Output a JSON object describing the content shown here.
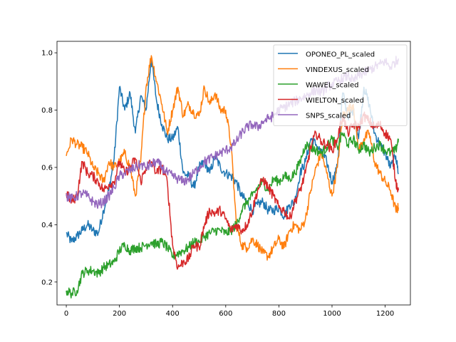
{
  "chart_data": {
    "type": "line",
    "title": "",
    "xlabel": "",
    "ylabel": "",
    "xlim": [
      -35,
      1295
    ],
    "ylim": [
      0.12,
      1.04
    ],
    "xticks": [
      0,
      200,
      400,
      600,
      800,
      1000,
      1200
    ],
    "yticks": [
      0.2,
      0.4,
      0.6,
      0.8,
      1.0
    ],
    "xtick_labels": [
      "0",
      "200",
      "400",
      "600",
      "800",
      "1000",
      "1200"
    ],
    "ytick_labels": [
      "0.2",
      "0.4",
      "0.6",
      "0.8",
      "1.0"
    ],
    "grid": false,
    "legend_position": "top-right",
    "series": [
      {
        "name": "OPONEO_PL_scaled",
        "color": "#1f77b4",
        "x": [
          0,
          20,
          40,
          60,
          80,
          100,
          120,
          140,
          160,
          180,
          200,
          220,
          240,
          260,
          280,
          300,
          320,
          340,
          360,
          380,
          400,
          420,
          440,
          460,
          480,
          500,
          520,
          540,
          560,
          580,
          600,
          620,
          640,
          660,
          680,
          700,
          720,
          740,
          760,
          780,
          800,
          820,
          840,
          860,
          880,
          900,
          920,
          940,
          960,
          980,
          1000,
          1020,
          1040,
          1060,
          1080,
          1100,
          1120,
          1140,
          1160,
          1180,
          1200,
          1220,
          1240,
          1250
        ],
        "y": [
          0.37,
          0.34,
          0.36,
          0.38,
          0.4,
          0.38,
          0.37,
          0.45,
          0.52,
          0.63,
          0.88,
          0.8,
          0.86,
          0.72,
          0.85,
          0.8,
          0.98,
          0.83,
          0.75,
          0.7,
          0.7,
          0.74,
          0.58,
          0.57,
          0.53,
          0.6,
          0.62,
          0.58,
          0.64,
          0.6,
          0.58,
          0.57,
          0.55,
          0.5,
          0.48,
          0.45,
          0.47,
          0.48,
          0.45,
          0.45,
          0.46,
          0.43,
          0.47,
          0.48,
          0.58,
          0.62,
          0.7,
          0.68,
          0.65,
          0.62,
          0.55,
          0.6,
          0.86,
          0.78,
          0.8,
          0.7,
          0.88,
          0.82,
          0.72,
          0.68,
          0.65,
          0.6,
          0.64,
          0.58
        ]
      },
      {
        "name": "VINDEXUS_scaled",
        "color": "#ff7f0e",
        "x": [
          0,
          20,
          40,
          60,
          80,
          100,
          120,
          140,
          160,
          180,
          200,
          220,
          240,
          260,
          280,
          300,
          320,
          340,
          360,
          380,
          400,
          420,
          440,
          460,
          480,
          500,
          520,
          540,
          560,
          580,
          600,
          620,
          640,
          660,
          680,
          700,
          720,
          740,
          760,
          780,
          800,
          820,
          840,
          860,
          880,
          900,
          920,
          940,
          960,
          980,
          1000,
          1020,
          1040,
          1060,
          1080,
          1100,
          1120,
          1140,
          1160,
          1180,
          1200,
          1220,
          1240,
          1250
        ],
        "y": [
          0.64,
          0.7,
          0.68,
          0.67,
          0.65,
          0.6,
          0.58,
          0.55,
          0.62,
          0.6,
          0.62,
          0.65,
          0.6,
          0.5,
          0.62,
          0.88,
          0.99,
          0.9,
          0.82,
          0.72,
          0.8,
          0.88,
          0.78,
          0.82,
          0.79,
          0.78,
          0.88,
          0.82,
          0.86,
          0.8,
          0.8,
          0.68,
          0.4,
          0.33,
          0.32,
          0.35,
          0.33,
          0.3,
          0.29,
          0.32,
          0.35,
          0.32,
          0.38,
          0.4,
          0.38,
          0.42,
          0.52,
          0.6,
          0.65,
          0.58,
          0.5,
          0.6,
          0.78,
          0.8,
          0.82,
          0.66,
          0.7,
          0.72,
          0.62,
          0.58,
          0.55,
          0.52,
          0.45,
          0.46
        ]
      },
      {
        "name": "WAWEL_scaled",
        "color": "#2ca02c",
        "x": [
          0,
          20,
          40,
          60,
          80,
          100,
          120,
          140,
          160,
          180,
          200,
          220,
          240,
          260,
          280,
          300,
          320,
          340,
          360,
          380,
          400,
          420,
          440,
          460,
          480,
          500,
          520,
          540,
          560,
          580,
          600,
          620,
          640,
          660,
          680,
          700,
          720,
          740,
          760,
          780,
          800,
          820,
          840,
          860,
          880,
          900,
          920,
          940,
          960,
          980,
          1000,
          1020,
          1040,
          1060,
          1080,
          1100,
          1120,
          1140,
          1160,
          1180,
          1200,
          1220,
          1240,
          1250
        ],
        "y": [
          0.17,
          0.16,
          0.17,
          0.23,
          0.24,
          0.24,
          0.23,
          0.25,
          0.26,
          0.27,
          0.31,
          0.33,
          0.31,
          0.32,
          0.32,
          0.33,
          0.34,
          0.33,
          0.34,
          0.32,
          0.29,
          0.3,
          0.31,
          0.32,
          0.34,
          0.34,
          0.36,
          0.37,
          0.38,
          0.38,
          0.37,
          0.38,
          0.4,
          0.45,
          0.48,
          0.5,
          0.53,
          0.55,
          0.52,
          0.56,
          0.55,
          0.57,
          0.56,
          0.58,
          0.62,
          0.68,
          0.67,
          0.66,
          0.65,
          0.67,
          0.7,
          0.67,
          0.72,
          0.68,
          0.7,
          0.66,
          0.68,
          0.65,
          0.67,
          0.68,
          0.66,
          0.65,
          0.66,
          0.7
        ]
      },
      {
        "name": "WIELTON_scaled",
        "color": "#d62728",
        "x": [
          0,
          20,
          40,
          60,
          80,
          100,
          120,
          140,
          160,
          180,
          200,
          220,
          240,
          260,
          280,
          300,
          320,
          340,
          360,
          380,
          400,
          420,
          440,
          460,
          480,
          500,
          520,
          540,
          560,
          580,
          600,
          620,
          640,
          660,
          680,
          700,
          720,
          740,
          760,
          780,
          800,
          820,
          840,
          860,
          880,
          900,
          920,
          940,
          960,
          980,
          1000,
          1020,
          1040,
          1060,
          1080,
          1100,
          1120,
          1140,
          1160,
          1180,
          1200,
          1220,
          1240,
          1250
        ],
        "y": [
          0.51,
          0.48,
          0.5,
          0.62,
          0.58,
          0.57,
          0.55,
          0.52,
          0.54,
          0.55,
          0.62,
          0.58,
          0.6,
          0.63,
          0.55,
          0.6,
          0.62,
          0.58,
          0.6,
          0.55,
          0.33,
          0.25,
          0.27,
          0.28,
          0.33,
          0.32,
          0.4,
          0.45,
          0.44,
          0.45,
          0.42,
          0.38,
          0.4,
          0.38,
          0.4,
          0.45,
          0.52,
          0.56,
          0.53,
          0.5,
          0.46,
          0.45,
          0.42,
          0.48,
          0.52,
          0.58,
          0.67,
          0.72,
          0.69,
          0.68,
          0.66,
          0.7,
          0.78,
          0.72,
          0.75,
          0.74,
          0.78,
          0.76,
          0.74,
          0.75,
          0.72,
          0.7,
          0.55,
          0.52
        ]
      },
      {
        "name": "SNPS_scaled",
        "color": "#9467bd",
        "x": [
          0,
          20,
          40,
          60,
          80,
          100,
          120,
          140,
          160,
          180,
          200,
          220,
          240,
          260,
          280,
          300,
          320,
          340,
          360,
          380,
          400,
          420,
          440,
          460,
          480,
          500,
          520,
          540,
          560,
          580,
          600,
          620,
          640,
          660,
          680,
          700,
          720,
          740,
          760,
          780,
          800,
          820,
          840,
          860,
          880,
          900,
          920,
          940,
          960,
          980,
          1000,
          1020,
          1040,
          1060,
          1080,
          1100,
          1120,
          1140,
          1160,
          1180,
          1200,
          1220,
          1240,
          1250
        ],
        "y": [
          0.5,
          0.49,
          0.5,
          0.51,
          0.5,
          0.48,
          0.47,
          0.48,
          0.5,
          0.53,
          0.57,
          0.58,
          0.59,
          0.6,
          0.61,
          0.6,
          0.61,
          0.62,
          0.6,
          0.58,
          0.57,
          0.56,
          0.55,
          0.56,
          0.58,
          0.6,
          0.62,
          0.63,
          0.64,
          0.65,
          0.66,
          0.67,
          0.69,
          0.72,
          0.74,
          0.75,
          0.74,
          0.76,
          0.77,
          0.78,
          0.8,
          0.81,
          0.82,
          0.83,
          0.84,
          0.85,
          0.86,
          0.87,
          0.86,
          0.88,
          0.89,
          0.9,
          0.91,
          0.92,
          0.9,
          0.92,
          0.93,
          0.94,
          0.95,
          0.96,
          0.97,
          0.95,
          0.97,
          0.98
        ]
      }
    ]
  }
}
